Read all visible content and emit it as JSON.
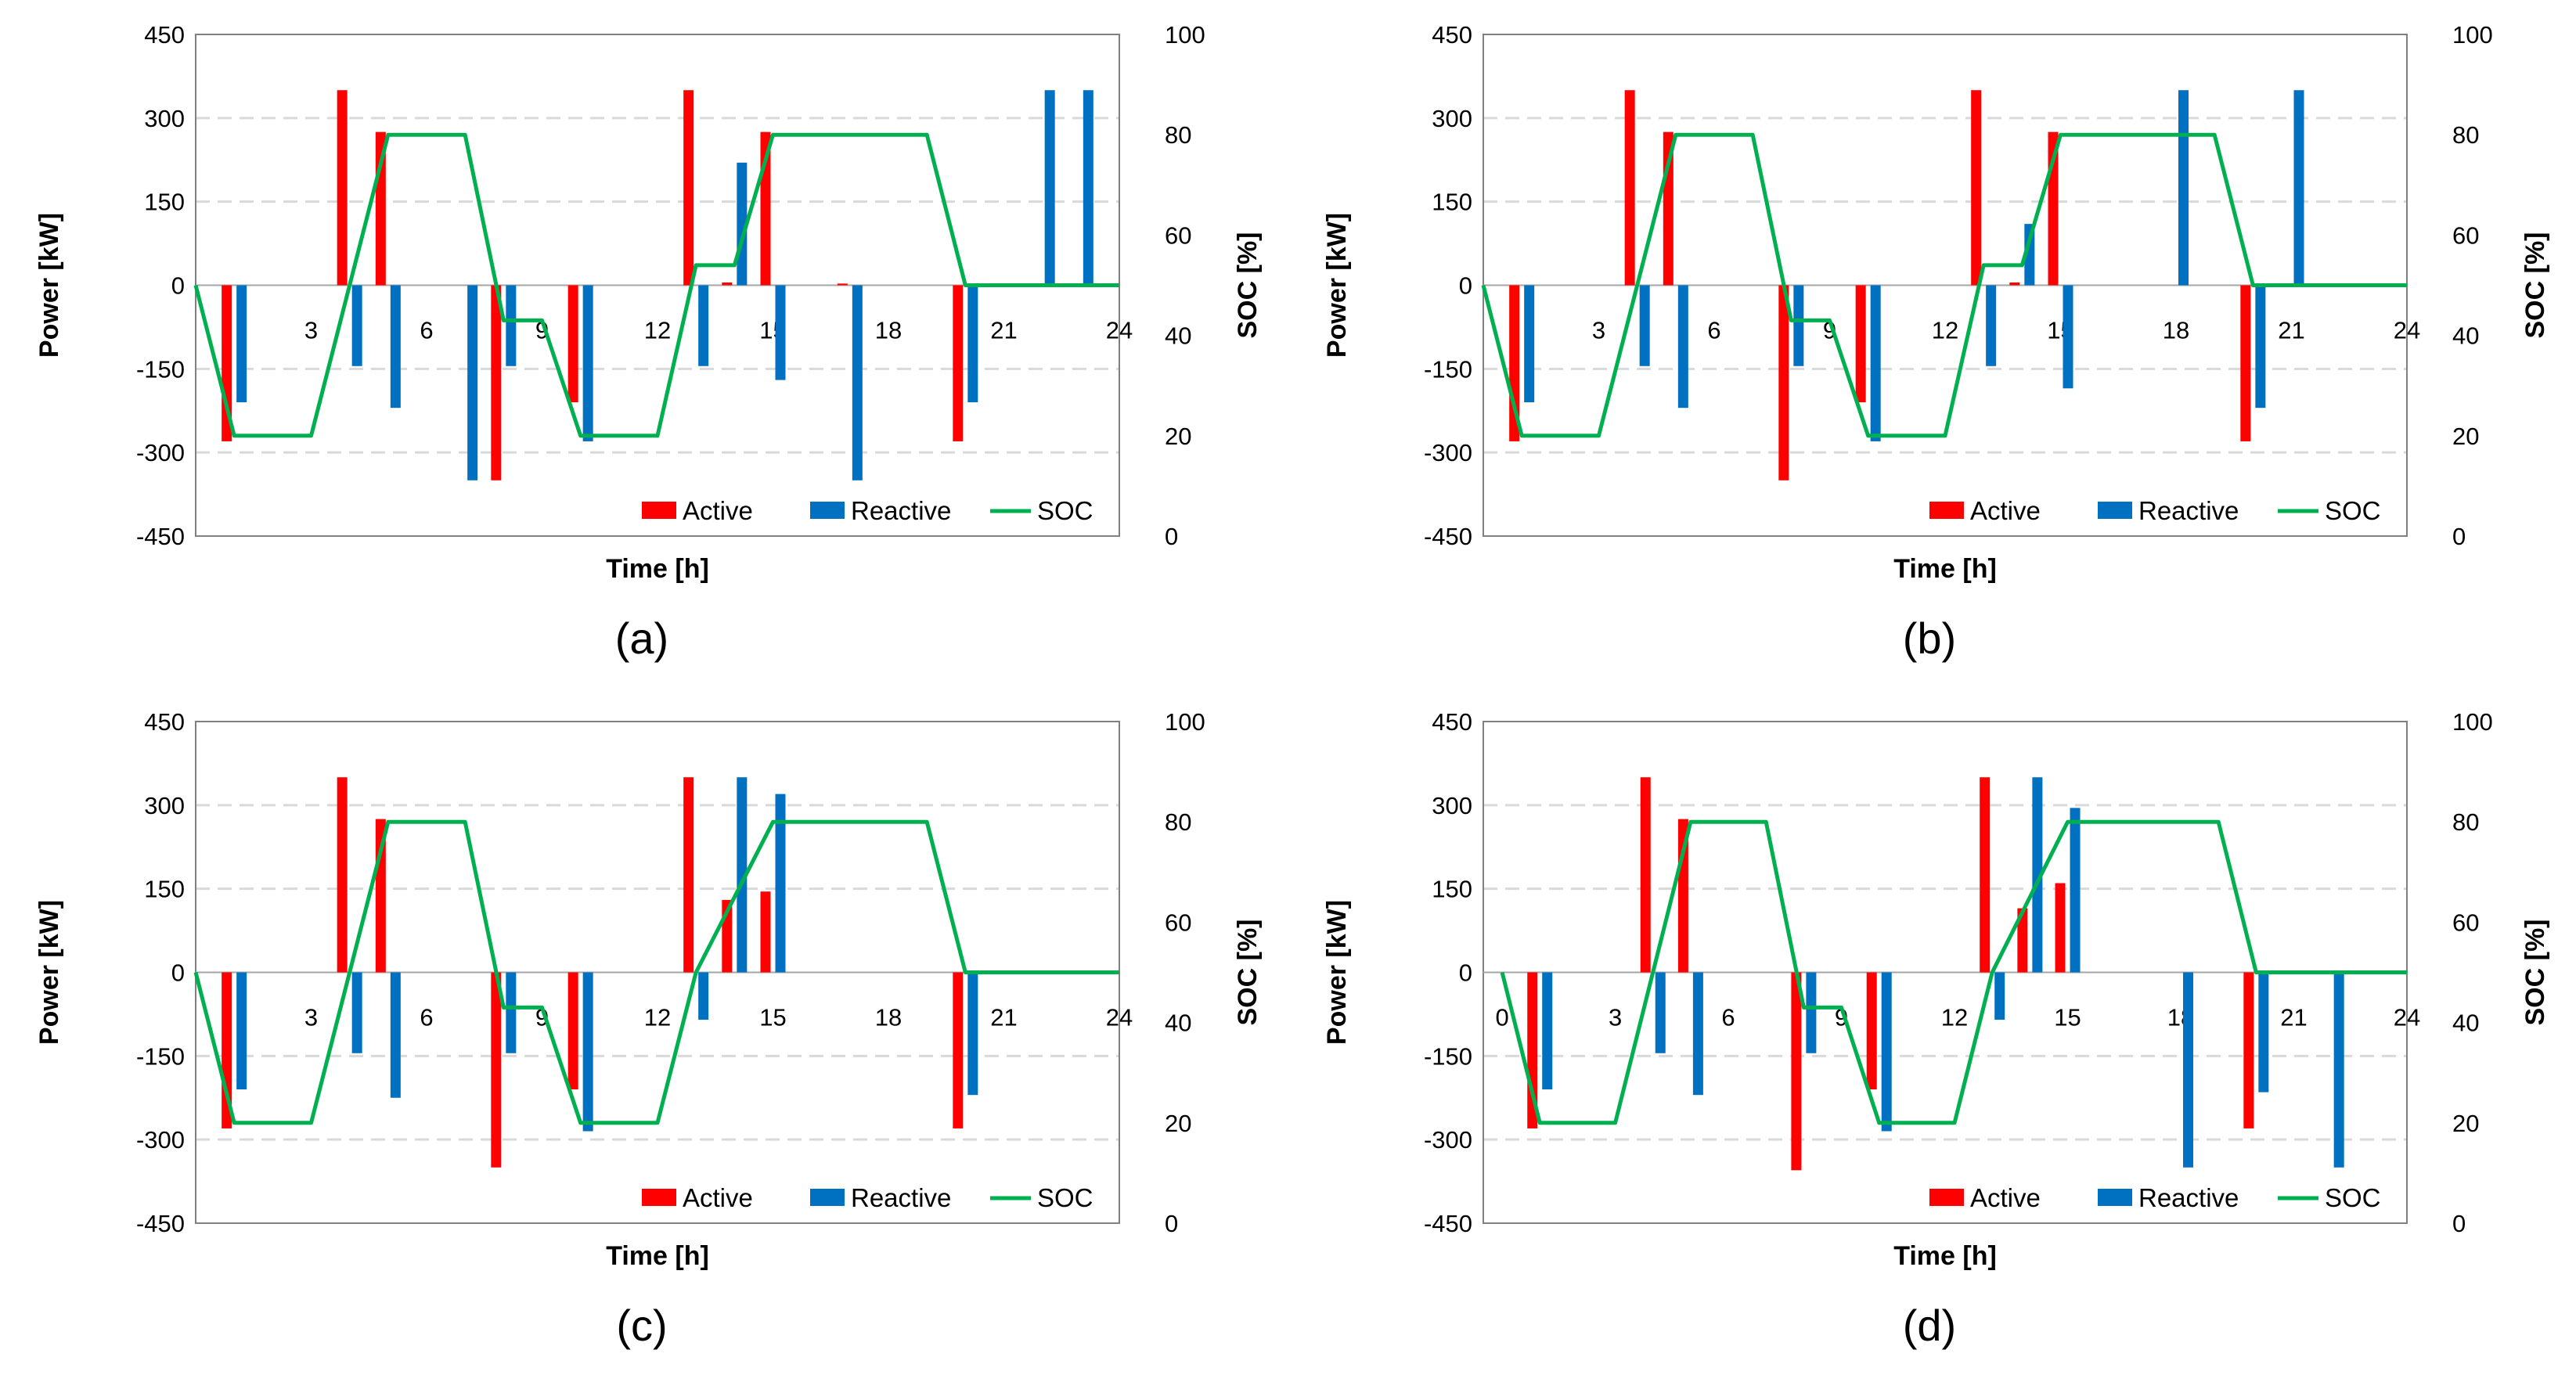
{
  "colors": {
    "active": "#ff0000",
    "reactive": "#0070c0",
    "soc": "#00b050",
    "grid": "#d9d9d9",
    "frame": "#808080"
  },
  "chart_data": [
    {
      "type": "bar",
      "caption": "(a)",
      "xlabel": "Time [h]",
      "ylabel": "Power [kW]",
      "y2label": "SOC [%]",
      "ylim": [
        -450,
        450
      ],
      "y2lim": [
        0,
        100
      ],
      "xlim": [
        0,
        24
      ],
      "yticks": [
        "450",
        "300",
        "150",
        "0",
        "-150",
        "-300",
        "-450"
      ],
      "y2ticks": [
        "100",
        "80",
        "60",
        "40",
        "20",
        "0"
      ],
      "xticks": [
        "3",
        "6",
        "9",
        "12",
        "15",
        "18",
        "21",
        "24"
      ],
      "grid": true,
      "legend": "bottom-right",
      "series": [
        {
          "name": "Active",
          "kind": "bar",
          "points": [
            [
              1,
              -280
            ],
            [
              4,
              350
            ],
            [
              5,
              275
            ],
            [
              8,
              -350
            ],
            [
              10,
              -210
            ],
            [
              13,
              350
            ],
            [
              14,
              5
            ],
            [
              15,
              275
            ],
            [
              17,
              3
            ],
            [
              20,
              -280
            ]
          ]
        },
        {
          "name": "Reactive",
          "kind": "bar",
          "points": [
            [
              1,
              -210
            ],
            [
              4,
              -145
            ],
            [
              5,
              -220
            ],
            [
              7,
              -350
            ],
            [
              8,
              -145
            ],
            [
              10,
              -280
            ],
            [
              13,
              -145
            ],
            [
              14,
              220
            ],
            [
              15,
              -170
            ],
            [
              17,
              -350
            ],
            [
              20,
              -210
            ],
            [
              22,
              350
            ],
            [
              23,
              350
            ]
          ]
        },
        {
          "name": "SOC",
          "kind": "line",
          "axis": "y2",
          "points": [
            [
              0,
              50
            ],
            [
              1,
              20
            ],
            [
              3,
              20
            ],
            [
              4,
              50
            ],
            [
              5,
              80
            ],
            [
              7,
              80
            ],
            [
              8,
              43
            ],
            [
              9,
              43
            ],
            [
              10,
              20
            ],
            [
              12,
              20
            ],
            [
              13,
              54
            ],
            [
              14,
              54
            ],
            [
              15,
              80
            ],
            [
              19,
              80
            ],
            [
              20,
              50
            ],
            [
              21,
              50
            ],
            [
              22,
              50
            ],
            [
              24,
              50
            ]
          ]
        }
      ]
    },
    {
      "type": "bar",
      "caption": "(b)",
      "xlabel": "Time [h]",
      "ylabel": "Power [kW]",
      "y2label": "SOC [%]",
      "ylim": [
        -450,
        450
      ],
      "y2lim": [
        0,
        100
      ],
      "xlim": [
        0,
        24
      ],
      "yticks": [
        "450",
        "300",
        "150",
        "0",
        "-150",
        "-300",
        "-450"
      ],
      "y2ticks": [
        "100",
        "80",
        "60",
        "40",
        "20",
        "0"
      ],
      "xticks": [
        "3",
        "6",
        "9",
        "12",
        "15",
        "18",
        "21",
        "24"
      ],
      "grid": true,
      "legend": "bottom-right",
      "series": [
        {
          "name": "Active",
          "kind": "bar",
          "points": [
            [
              1,
              -280
            ],
            [
              4,
              350
            ],
            [
              5,
              275
            ],
            [
              8,
              -350
            ],
            [
              10,
              -210
            ],
            [
              13,
              350
            ],
            [
              14,
              5
            ],
            [
              15,
              275
            ],
            [
              20,
              -280
            ]
          ]
        },
        {
          "name": "Reactive",
          "kind": "bar",
          "points": [
            [
              1,
              -210
            ],
            [
              4,
              -145
            ],
            [
              5,
              -220
            ],
            [
              8,
              -145
            ],
            [
              10,
              -280
            ],
            [
              13,
              -145
            ],
            [
              14,
              110
            ],
            [
              15,
              -185
            ],
            [
              18,
              350
            ],
            [
              20,
              -220
            ],
            [
              21,
              350
            ]
          ]
        },
        {
          "name": "SOC",
          "kind": "line",
          "axis": "y2",
          "points": [
            [
              0,
              50
            ],
            [
              1,
              20
            ],
            [
              3,
              20
            ],
            [
              4,
              50
            ],
            [
              5,
              80
            ],
            [
              7,
              80
            ],
            [
              8,
              43
            ],
            [
              9,
              43
            ],
            [
              10,
              20
            ],
            [
              12,
              20
            ],
            [
              13,
              54
            ],
            [
              14,
              54
            ],
            [
              15,
              80
            ],
            [
              19,
              80
            ],
            [
              20,
              50
            ],
            [
              24,
              50
            ]
          ]
        }
      ]
    },
    {
      "type": "bar",
      "caption": "(c)",
      "xlabel": "Time [h]",
      "ylabel": "Power [kW]",
      "y2label": "SOC [%]",
      "ylim": [
        -450,
        450
      ],
      "y2lim": [
        0,
        100
      ],
      "xlim": [
        0,
        24
      ],
      "yticks": [
        "450",
        "300",
        "150",
        "0",
        "-150",
        "-300",
        "-450"
      ],
      "y2ticks": [
        "100",
        "80",
        "60",
        "40",
        "20",
        "0"
      ],
      "xticks": [
        "3",
        "6",
        "9",
        "12",
        "15",
        "18",
        "21",
        "24"
      ],
      "grid": true,
      "legend": "bottom-right",
      "series": [
        {
          "name": "Active",
          "kind": "bar",
          "points": [
            [
              1,
              -280
            ],
            [
              4,
              350
            ],
            [
              5,
              275
            ],
            [
              8,
              -350
            ],
            [
              10,
              -210
            ],
            [
              13,
              350
            ],
            [
              14,
              130
            ],
            [
              15,
              145
            ],
            [
              20,
              -280
            ]
          ]
        },
        {
          "name": "Reactive",
          "kind": "bar",
          "points": [
            [
              1,
              -210
            ],
            [
              4,
              -145
            ],
            [
              5,
              -225
            ],
            [
              8,
              -145
            ],
            [
              10,
              -285
            ],
            [
              13,
              -85
            ],
            [
              14,
              350
            ],
            [
              15,
              320
            ],
            [
              20,
              -220
            ]
          ]
        },
        {
          "name": "SOC",
          "kind": "line",
          "axis": "y2",
          "points": [
            [
              0,
              50
            ],
            [
              1,
              20
            ],
            [
              3,
              20
            ],
            [
              4,
              50
            ],
            [
              5,
              80
            ],
            [
              7,
              80
            ],
            [
              8,
              43
            ],
            [
              9,
              43
            ],
            [
              10,
              20
            ],
            [
              12,
              20
            ],
            [
              13,
              50
            ],
            [
              14,
              65
            ],
            [
              15,
              80
            ],
            [
              19,
              80
            ],
            [
              20,
              50
            ],
            [
              24,
              50
            ]
          ]
        }
      ]
    },
    {
      "type": "bar",
      "caption": "(d)",
      "xlabel": "Time [h]",
      "ylabel": "Power [kW]",
      "y2label": "SOC [%]",
      "ylim": [
        -450,
        450
      ],
      "y2lim": [
        0,
        100
      ],
      "xlim": [
        -0.5,
        24
      ],
      "yticks": [
        "450",
        "300",
        "150",
        "0",
        "-150",
        "-300",
        "-450"
      ],
      "y2ticks": [
        "100",
        "80",
        "60",
        "40",
        "20",
        "0"
      ],
      "xticks": [
        "0",
        "3",
        "6",
        "9",
        "12",
        "15",
        "18",
        "21",
        "24"
      ],
      "grid": true,
      "legend": "bottom-right",
      "series": [
        {
          "name": "Active",
          "kind": "bar",
          "points": [
            [
              1,
              -280
            ],
            [
              4,
              350
            ],
            [
              5,
              275
            ],
            [
              8,
              -355
            ],
            [
              10,
              -210
            ],
            [
              13,
              350
            ],
            [
              14,
              115
            ],
            [
              15,
              160
            ],
            [
              20,
              -280
            ]
          ]
        },
        {
          "name": "Reactive",
          "kind": "bar",
          "points": [
            [
              1,
              -210
            ],
            [
              4,
              -145
            ],
            [
              5,
              -220
            ],
            [
              8,
              -145
            ],
            [
              10,
              -285
            ],
            [
              13,
              -85
            ],
            [
              14,
              350
            ],
            [
              15,
              295
            ],
            [
              18,
              -350
            ],
            [
              20,
              -215
            ],
            [
              22,
              -350
            ]
          ]
        },
        {
          "name": "SOC",
          "kind": "line",
          "axis": "y2",
          "points": [
            [
              0,
              50
            ],
            [
              1,
              20
            ],
            [
              3,
              20
            ],
            [
              4,
              50
            ],
            [
              5,
              80
            ],
            [
              7,
              80
            ],
            [
              8,
              43
            ],
            [
              9,
              43
            ],
            [
              10,
              20
            ],
            [
              11,
              20
            ],
            [
              12,
              20
            ],
            [
              13,
              50
            ],
            [
              14,
              65
            ],
            [
              15,
              80
            ],
            [
              19,
              80
            ],
            [
              20,
              50
            ],
            [
              24,
              50
            ]
          ]
        }
      ]
    }
  ]
}
